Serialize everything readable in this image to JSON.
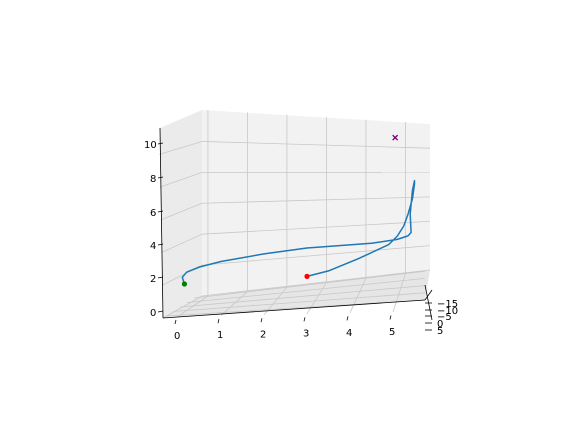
{
  "chart_data": {
    "type": "line3d",
    "title": "",
    "xlabel": "",
    "ylabel": "",
    "zlabel": "",
    "grid": true,
    "x_ticks": [
      "0",
      "1",
      "2",
      "3",
      "4",
      "5"
    ],
    "y_ticks": [
      "−15",
      "−10",
      "−5",
      "0",
      "5"
    ],
    "z_ticks": [
      "0",
      "2",
      "4",
      "6",
      "8",
      "10"
    ],
    "xlim": [
      -0.2,
      5.7
    ],
    "zlim": [
      -0.3,
      11
    ],
    "series": [
      {
        "kind": "trajectory",
        "color": "#1f77b4",
        "x": [
          3.0,
          3.5,
          4.2,
          4.9,
          5.1,
          5.25,
          5.35,
          5.45,
          5.5,
          5.5,
          5.45,
          5.4,
          5.42,
          5.35,
          5.1,
          4.5,
          3.0,
          2.0,
          1.0,
          0.5,
          0.2,
          0.1,
          0.15
        ],
        "z": [
          2.0,
          2.3,
          3.0,
          3.8,
          4.3,
          4.9,
          5.6,
          6.5,
          7.4,
          7.6,
          7.0,
          5.6,
          4.5,
          4.3,
          4.1,
          3.9,
          3.7,
          3.4,
          3.0,
          2.7,
          2.4,
          2.1,
          1.7
        ]
      }
    ],
    "markers": [
      {
        "kind": "start",
        "color": "#ff0000",
        "shape": "circle",
        "x": 3.0,
        "z": 2.0
      },
      {
        "kind": "end",
        "color": "#008000",
        "shape": "circle",
        "x": 0.15,
        "z": 1.7
      },
      {
        "kind": "target",
        "color": "#800080",
        "shape": "x",
        "x": 5.05,
        "z": 10.2
      }
    ]
  }
}
